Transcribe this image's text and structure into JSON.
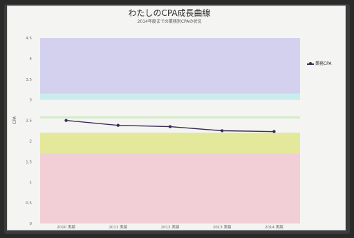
{
  "chart_data": {
    "type": "line",
    "title": "わたしのCPA成長曲線",
    "subtitle": "2014年度までの業務別CPAの状況",
    "ylabel": "CPA",
    "categories": [
      "2010 実績",
      "2011 実績",
      "2012 実績",
      "2013 実績",
      "2014 実績"
    ],
    "series": [
      {
        "name": "業務CPA",
        "values": [
          2.5,
          2.38,
          2.35,
          2.25,
          2.23
        ]
      }
    ],
    "ylim": [
      0,
      4.5
    ],
    "yticks": [
      "0",
      "0.5",
      "1",
      "1.5",
      "2",
      "2.5",
      "3",
      "3.5",
      "4",
      "4.5"
    ],
    "bands": [
      {
        "from": 0,
        "to": 1.7,
        "color": "#f2cfd6"
      },
      {
        "from": 1.7,
        "to": 2.2,
        "color": "#e4e89a"
      },
      {
        "from": 2.55,
        "to": 2.6,
        "color": "#d2ecc8"
      },
      {
        "from": 3.0,
        "to": 3.15,
        "color": "#c9ecec"
      },
      {
        "from": 3.15,
        "to": 4.5,
        "color": "#d3d1ee"
      }
    ],
    "line_color": "#3a2a55",
    "legend_position": "right",
    "grid": false
  }
}
